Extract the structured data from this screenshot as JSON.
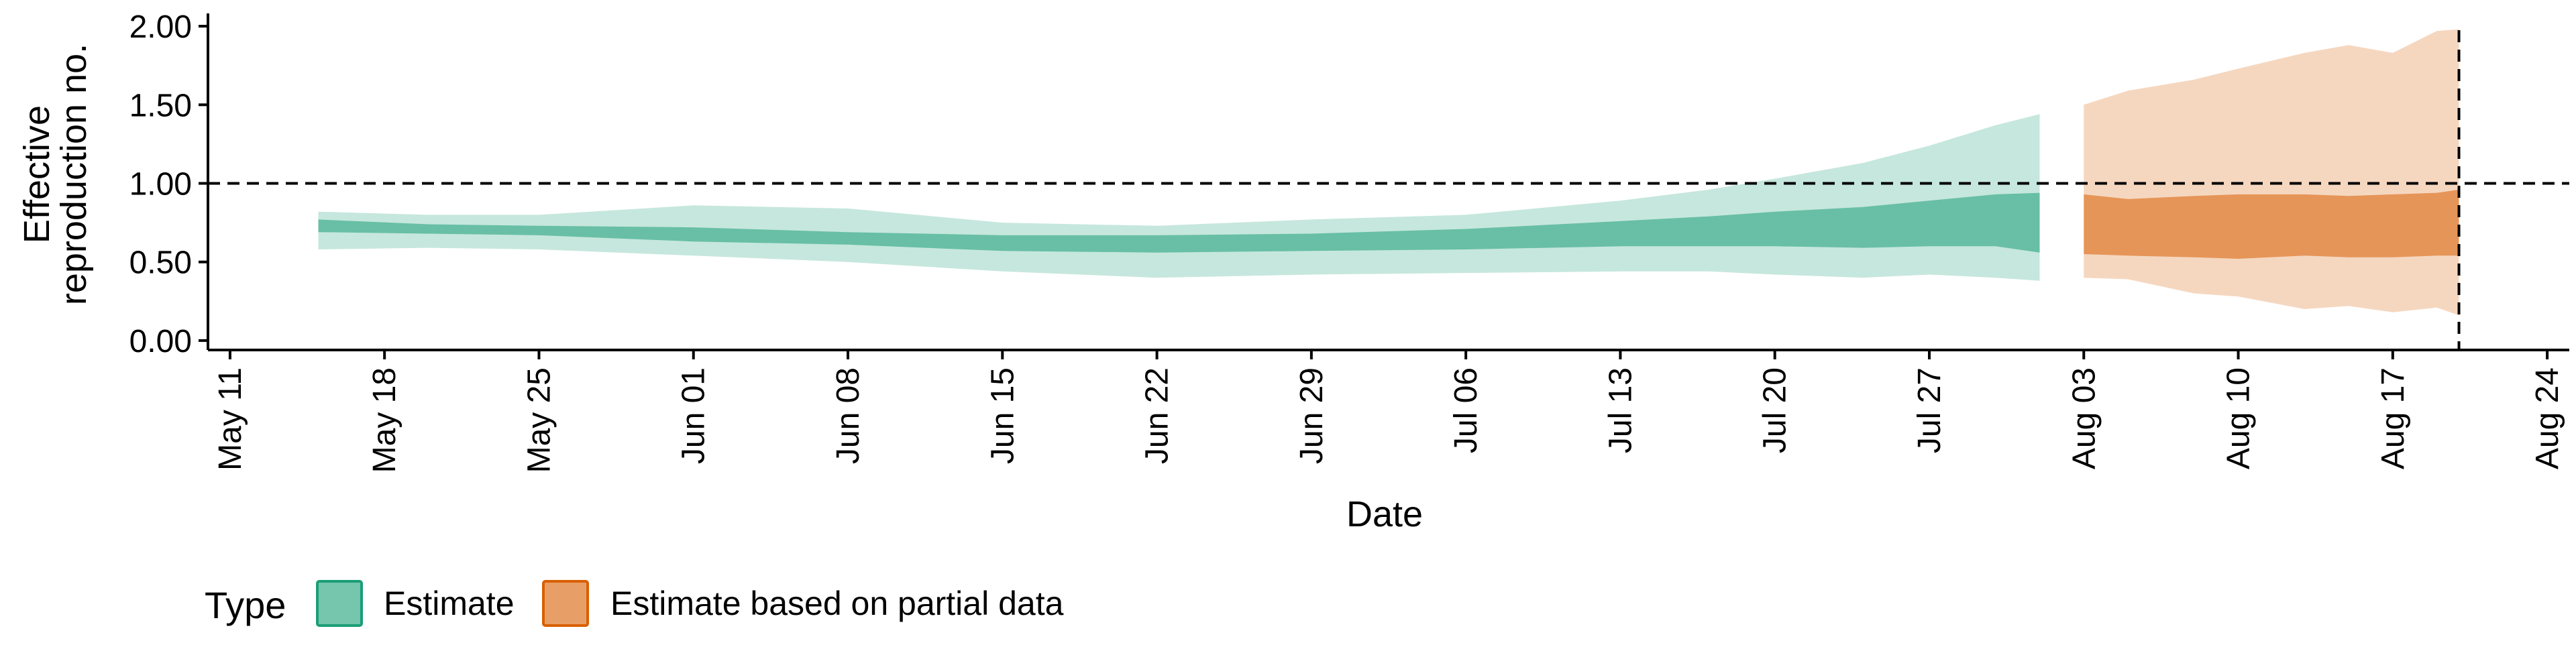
{
  "chart_data": {
    "type": "area",
    "xlabel": "Date",
    "ylabel": [
      "Effective",
      "reproduction no."
    ],
    "xlim": [
      "2020-05-10",
      "2020-08-25"
    ],
    "ylim": [
      -0.06,
      2.06
    ],
    "x_ticks": [
      "2020-05-11",
      "2020-05-18",
      "2020-05-25",
      "2020-06-01",
      "2020-06-08",
      "2020-06-15",
      "2020-06-22",
      "2020-06-29",
      "2020-07-06",
      "2020-07-13",
      "2020-07-20",
      "2020-07-27",
      "2020-08-03",
      "2020-08-10",
      "2020-08-17",
      "2020-08-24"
    ],
    "x_tick_labels": [
      "May 11",
      "May 18",
      "May 25",
      "Jun 01",
      "Jun 08",
      "Jun 15",
      "Jun 22",
      "Jun 29",
      "Jul 06",
      "Jul 13",
      "Jul 20",
      "Jul 27",
      "Aug 03",
      "Aug 10",
      "Aug 17",
      "Aug 24"
    ],
    "y_ticks": [
      0,
      0.5,
      1,
      1.5,
      2
    ],
    "y_tick_labels": [
      "0.00",
      "0.50",
      "1.00",
      "1.50",
      "2.00"
    ],
    "reference_hline": 1.0,
    "reference_vline": "2020-08-20",
    "grid": false,
    "legend": {
      "title": "Type",
      "position": "bottom-left",
      "entries": [
        "Estimate",
        "Estimate based on partial data"
      ]
    },
    "series": [
      {
        "name": "Estimate",
        "color": "#1B9E77",
        "x": [
          "2020-05-15",
          "2020-05-20",
          "2020-05-25",
          "2020-06-01",
          "2020-06-08",
          "2020-06-15",
          "2020-06-22",
          "2020-06-29",
          "2020-07-06",
          "2020-07-13",
          "2020-07-17",
          "2020-07-20",
          "2020-07-24",
          "2020-07-27",
          "2020-07-30",
          "2020-08-01"
        ],
        "lower_90": [
          0.58,
          0.59,
          0.58,
          0.54,
          0.5,
          0.44,
          0.4,
          0.42,
          0.43,
          0.44,
          0.44,
          0.42,
          0.4,
          0.42,
          0.4,
          0.38
        ],
        "lower_50": [
          0.69,
          0.68,
          0.67,
          0.63,
          0.61,
          0.57,
          0.56,
          0.57,
          0.58,
          0.6,
          0.6,
          0.6,
          0.59,
          0.6,
          0.6,
          0.56
        ],
        "upper_50": [
          0.77,
          0.74,
          0.73,
          0.72,
          0.69,
          0.67,
          0.67,
          0.68,
          0.71,
          0.76,
          0.79,
          0.82,
          0.85,
          0.89,
          0.93,
          0.94
        ],
        "upper_90": [
          0.82,
          0.8,
          0.8,
          0.86,
          0.84,
          0.75,
          0.73,
          0.77,
          0.8,
          0.89,
          0.96,
          1.03,
          1.13,
          1.24,
          1.37,
          1.44
        ]
      },
      {
        "name": "Estimate based on partial data",
        "color": "#D95F02",
        "x": [
          "2020-08-03",
          "2020-08-05",
          "2020-08-08",
          "2020-08-10",
          "2020-08-13",
          "2020-08-15",
          "2020-08-17",
          "2020-08-19",
          "2020-08-20"
        ],
        "lower_90": [
          0.4,
          0.39,
          0.3,
          0.28,
          0.2,
          0.22,
          0.18,
          0.21,
          0.16
        ],
        "lower_50": [
          0.55,
          0.54,
          0.53,
          0.52,
          0.54,
          0.53,
          0.53,
          0.54,
          0.54
        ],
        "upper_50": [
          0.93,
          0.9,
          0.92,
          0.93,
          0.93,
          0.92,
          0.93,
          0.94,
          0.96
        ],
        "upper_90": [
          1.5,
          1.59,
          1.66,
          1.73,
          1.83,
          1.88,
          1.83,
          1.97,
          1.98
        ]
      }
    ]
  }
}
